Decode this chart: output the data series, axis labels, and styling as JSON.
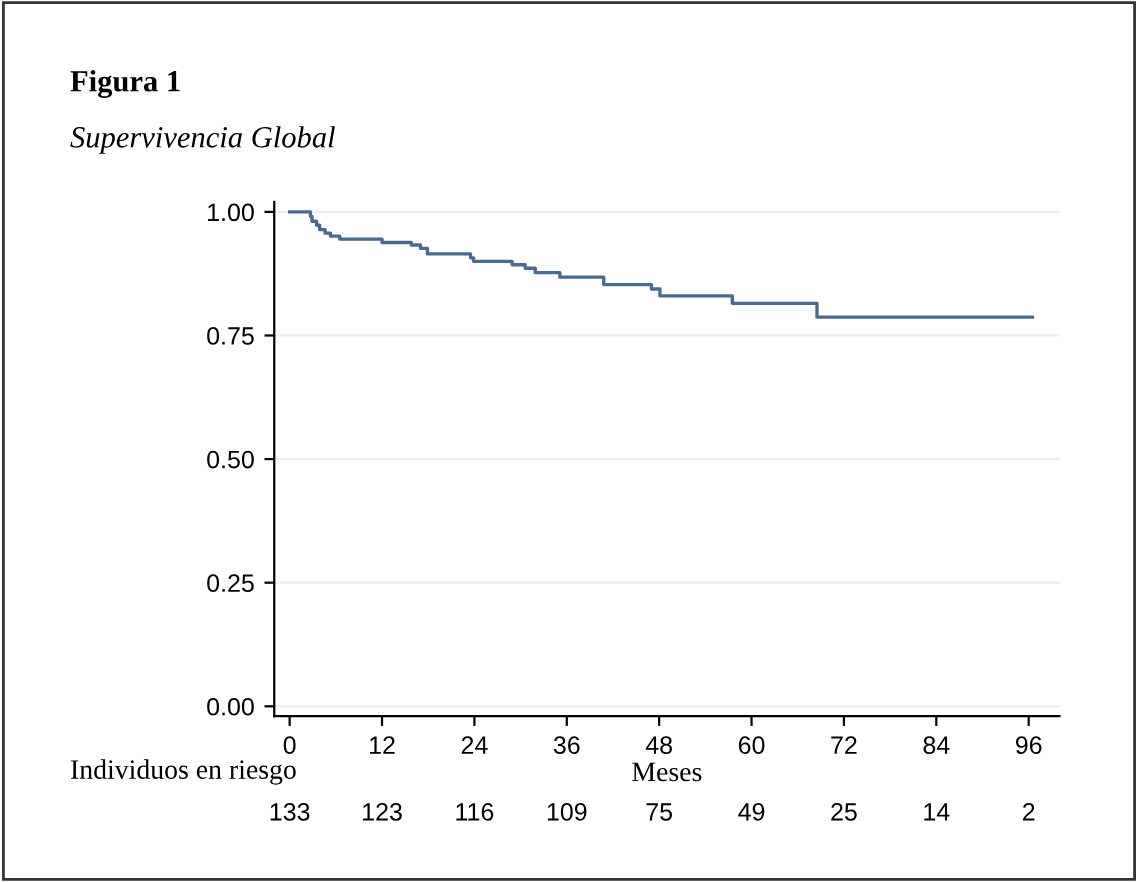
{
  "chart_data": {
    "type": "step",
    "title": "Figura 1",
    "subtitle": "Supervivencia Global",
    "xlabel": "Meses",
    "x": [
      0,
      2.7,
      2.9,
      3.5,
      3.9,
      4.6,
      5.3,
      6.5,
      12.0,
      15.8,
      17.0,
      17.9,
      23.5,
      23.9,
      28.9,
      30.6,
      31.9,
      35.1,
      40.8,
      47.0,
      48.1,
      57.5,
      68.5,
      96.5
    ],
    "values": [
      1.0,
      0.991,
      0.981,
      0.973,
      0.964,
      0.957,
      0.951,
      0.945,
      0.938,
      0.933,
      0.926,
      0.915,
      0.907,
      0.9,
      0.893,
      0.886,
      0.877,
      0.868,
      0.853,
      0.844,
      0.83,
      0.815,
      0.787,
      0.787
    ],
    "color": "#4a6a8e",
    "xlim": [
      -2,
      100
    ],
    "ylim": [
      -0.02,
      1.02
    ],
    "xticks": [
      0,
      12,
      24,
      36,
      48,
      60,
      72,
      84,
      96
    ],
    "yticks": [
      {
        "value": 0,
        "label": "0.00"
      },
      {
        "value": 0.25,
        "label": "0.25"
      },
      {
        "value": 0.5,
        "label": "0.50"
      },
      {
        "value": 0.75,
        "label": "0.75"
      },
      {
        "value": 1,
        "label": "1.00"
      }
    ],
    "grid": "y",
    "annotations": [
      "Individuos en riesgo",
      "133",
      "123",
      "116",
      "109",
      "75",
      "49",
      "25",
      "14",
      "2"
    ]
  }
}
